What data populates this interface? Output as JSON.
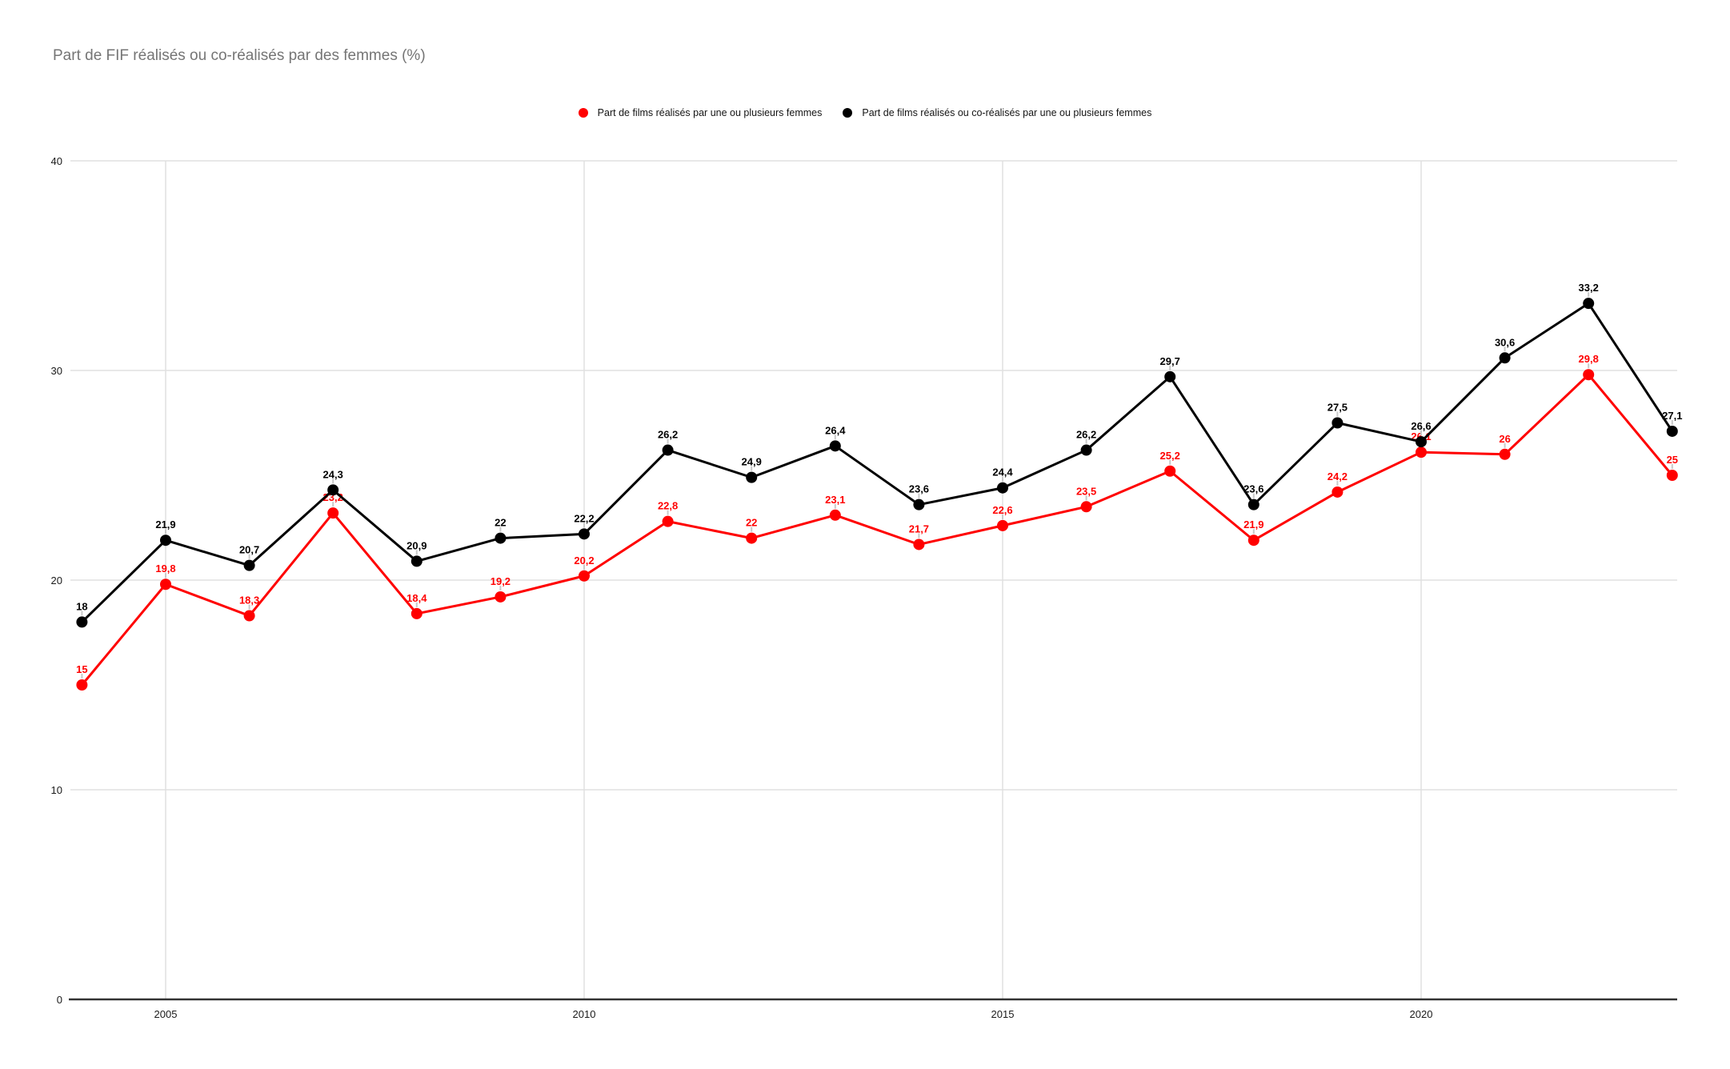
{
  "chart_data": {
    "type": "line",
    "title": "Part de FIF réalisés ou co-réalisés par des femmes (%)",
    "x": [
      2004,
      2005,
      2006,
      2007,
      2008,
      2009,
      2010,
      2011,
      2012,
      2013,
      2014,
      2015,
      2016,
      2017,
      2018,
      2019,
      2020,
      2021,
      2022,
      2023
    ],
    "xticks": [
      2005,
      2010,
      2015,
      2020
    ],
    "yticks": [
      0,
      10,
      20,
      30,
      40
    ],
    "ylim": [
      0,
      40
    ],
    "grid": true,
    "legend_position": "top",
    "decimal_separator": ",",
    "series": [
      {
        "name": "Part de films réalisés par une ou plusieurs femmes",
        "color": "#ff0000",
        "values": [
          15,
          19.8,
          18.3,
          23.2,
          18.4,
          19.2,
          20.2,
          22.8,
          22,
          23.1,
          21.7,
          22.6,
          23.5,
          25.2,
          21.9,
          24.2,
          26.1,
          26,
          29.8,
          25
        ],
        "labels": [
          "15",
          "19,8",
          "18,3",
          "23,2",
          "18,4",
          "19,2",
          "20,2",
          "22,8",
          "22",
          "23,1",
          "21,7",
          "22,6",
          "23,5",
          "25,2",
          "21,9",
          "24,2",
          "26,1",
          "26",
          "29,8",
          "25"
        ]
      },
      {
        "name": "Part de films réalisés ou co-réalisés par une ou plusieurs femmes",
        "color": "#000000",
        "values": [
          18,
          21.9,
          20.7,
          24.3,
          20.9,
          22,
          22.2,
          26.2,
          24.9,
          26.4,
          23.6,
          24.4,
          26.2,
          29.7,
          23.6,
          27.5,
          26.6,
          30.6,
          33.2,
          27.1
        ],
        "labels": [
          "18",
          "21,9",
          "20,7",
          "24,3",
          "20,9",
          "22",
          "22,2",
          "26,2",
          "24,9",
          "26,4",
          "23,6",
          "24,4",
          "26,2",
          "29,7",
          "23,6",
          "27,5",
          "26,6",
          "30,6",
          "33,2",
          "27,1"
        ]
      }
    ],
    "colors": {
      "title": "#757575",
      "tick_label": "#1a1a1a",
      "gridline": "#e0e0e0",
      "axis_line": "#333333",
      "label_stem": "#c9c9c9"
    }
  }
}
